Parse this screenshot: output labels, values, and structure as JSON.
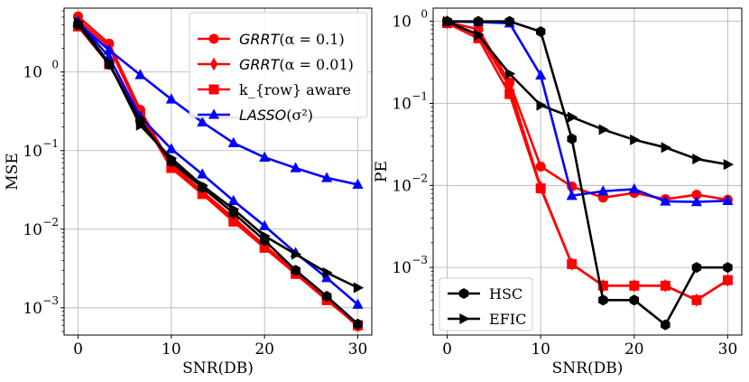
{
  "chart_data": [
    {
      "type": "line",
      "xlabel": "SNR(DB)",
      "ylabel": "MSE",
      "yscale": "log",
      "xlim": [
        -1.5,
        31.5
      ],
      "ylim": [
        0.00045,
        6.5
      ],
      "xticks": [
        0,
        10,
        20,
        30
      ],
      "xtick_labels": [
        "0",
        "10",
        "20",
        "30"
      ],
      "yticks": [
        0.001,
        0.01,
        0.1,
        1
      ],
      "ytick_labels": [
        "10",
        "10",
        "10",
        "10"
      ],
      "ytick_exponents": [
        "−3",
        "−2",
        "−1",
        "0"
      ],
      "grid": true,
      "legend_position": "top-right",
      "x": [
        0,
        3.33,
        6.67,
        10,
        13.33,
        16.67,
        20,
        23.33,
        26.67,
        30
      ],
      "series": [
        {
          "name_prefix": "GRRT",
          "name_suffix": "(α = 0.1)",
          "color": "#ff0000",
          "marker": "circle",
          "values": [
            5.1,
            2.3,
            0.33,
            0.065,
            0.029,
            0.013,
            0.0059,
            0.0028,
            0.0013,
            0.00058
          ]
        },
        {
          "name_prefix": "GRRT",
          "name_suffix": "(α = 0.01)",
          "color": "#ff0000",
          "marker": "diamond",
          "values": [
            4.6,
            2.1,
            0.3,
            0.068,
            0.03,
            0.014,
            0.0062,
            0.0029,
            0.00135,
            0.0006
          ]
        },
        {
          "name": "k_{row} aware",
          "color": "#ff0000",
          "marker": "square",
          "values": [
            3.8,
            1.25,
            0.28,
            0.06,
            0.028,
            0.0125,
            0.0058,
            0.0027,
            0.00125,
            0.0006
          ]
        },
        {
          "name_prefix": "LASSO",
          "name_suffix": "(σ²)",
          "color": "#0000ff",
          "marker": "triangle-up",
          "values": [
            4.2,
            1.9,
            0.92,
            0.45,
            0.23,
            0.125,
            0.082,
            0.06,
            0.045,
            0.037
          ]
        },
        {
          "name": "",
          "color": "#0000ff",
          "marker": "triangle-up",
          "values": [
            4.4,
            1.55,
            0.27,
            0.105,
            0.05,
            0.023,
            0.011,
            0.005,
            0.0024,
            0.0011
          ]
        },
        {
          "name": "",
          "color": "#000000",
          "marker": "hexagon",
          "values": [
            4.0,
            1.25,
            0.24,
            0.072,
            0.034,
            0.016,
            0.0072,
            0.003,
            0.0014,
            0.00062
          ]
        },
        {
          "name": "",
          "color": "#000000",
          "marker": "triangle-right",
          "values": [
            4.3,
            1.3,
            0.21,
            0.08,
            0.036,
            0.018,
            0.0082,
            0.0048,
            0.0028,
            0.0018
          ]
        }
      ]
    },
    {
      "type": "line",
      "xlabel": "SNR(DB)",
      "ylabel": "PE",
      "yscale": "log",
      "xlim": [
        -1.5,
        31.5
      ],
      "ylim": [
        0.00015,
        1.45
      ],
      "xticks": [
        0,
        10,
        20,
        30
      ],
      "xtick_labels": [
        "0",
        "10",
        "20",
        "30"
      ],
      "yticks": [
        0.001,
        0.01,
        0.1,
        1
      ],
      "ytick_labels": [
        "10",
        "10",
        "10",
        "10"
      ],
      "ytick_exponents": [
        "−3",
        "−2",
        "−1",
        "0"
      ],
      "grid": true,
      "legend_position": "bottom-left",
      "x": [
        0,
        3.33,
        6.67,
        10,
        13.33,
        16.67,
        20,
        23.33,
        26.67,
        30
      ],
      "series": [
        {
          "name": "",
          "color": "#ff0000",
          "marker": "circle",
          "values": [
            0.98,
            0.8,
            0.18,
            0.017,
            0.0097,
            0.0071,
            0.0081,
            0.0068,
            0.0077,
            0.0067
          ]
        },
        {
          "name": "",
          "color": "#ff0000",
          "marker": "diamond",
          "values": [
            0.97,
            0.7,
            0.16,
            0.0095,
            0.0011,
            0.0006,
            0.0006,
            0.0006,
            0.0004,
            0.0007
          ]
        },
        {
          "name": "",
          "color": "#ff0000",
          "marker": "square",
          "values": [
            0.95,
            0.62,
            0.13,
            0.0092,
            0.0011,
            0.0006,
            0.0006,
            0.0006,
            0.0004,
            0.0007
          ]
        },
        {
          "name": "",
          "color": "#0000ff",
          "marker": "triangle-up",
          "values": [
            1.0,
            0.98,
            0.95,
            0.22,
            0.0075,
            0.0085,
            0.009,
            0.0064,
            0.0063,
            0.0065
          ]
        },
        {
          "name": "HSC",
          "color": "#000000",
          "marker": "hexagon",
          "values": [
            1.0,
            1.0,
            1.0,
            0.75,
            0.037,
            0.0004,
            0.0004,
            0.0002,
            0.001,
            0.001
          ]
        },
        {
          "name": "EFIC",
          "color": "#000000",
          "marker": "triangle-right",
          "values": [
            1.0,
            0.68,
            0.23,
            0.095,
            0.068,
            0.048,
            0.036,
            0.029,
            0.021,
            0.018
          ]
        }
      ]
    }
  ]
}
